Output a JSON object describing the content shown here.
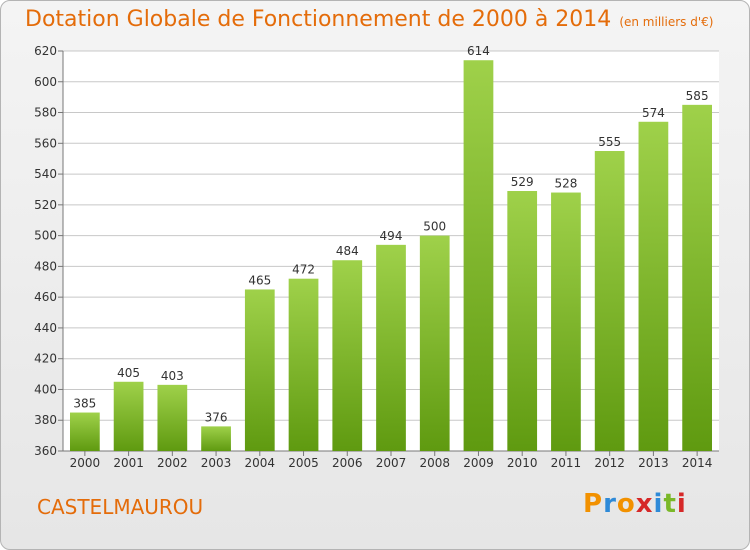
{
  "chart_data": {
    "type": "bar",
    "title": "Dotation Globale de Fonctionnement de 2000 à 2014",
    "subtitle": "(en milliers d'€)",
    "categories": [
      "2000",
      "2001",
      "2002",
      "2003",
      "2004",
      "2005",
      "2006",
      "2007",
      "2008",
      "2009",
      "2010",
      "2011",
      "2012",
      "2013",
      "2014"
    ],
    "values": [
      385,
      405,
      403,
      376,
      465,
      472,
      484,
      494,
      500,
      614,
      529,
      528,
      555,
      574,
      585
    ],
    "ylim": [
      360,
      620
    ],
    "yticks": [
      360,
      380,
      400,
      420,
      440,
      460,
      480,
      500,
      520,
      540,
      560,
      580,
      600,
      620
    ],
    "grid": true,
    "bar_color_top": "#9fd14a",
    "bar_color_bottom": "#5f9a10"
  },
  "footer": {
    "commune": "CASTELMAUROU",
    "brand": "Proxiti"
  },
  "colors": {
    "title": "#e46c0a",
    "brand_letters": [
      "#f29100",
      "#2e8ad8",
      "#f29100",
      "#d62828",
      "#2e8ad8",
      "#7ab828",
      "#d62828"
    ]
  }
}
